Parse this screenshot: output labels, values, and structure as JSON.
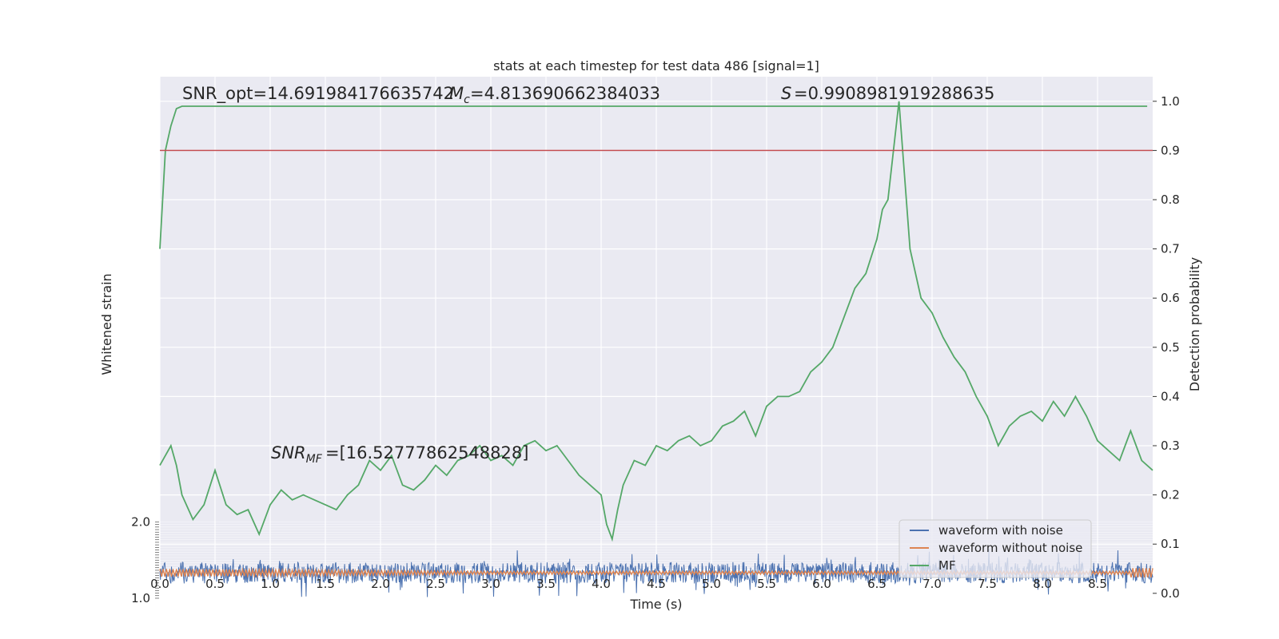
{
  "chart_data": {
    "type": "line",
    "title": "stats at each timestep for test data 486 [signal=1]",
    "xlabel": "Time (s)",
    "ylabel_left": "Whitened strain",
    "ylabel_right": "Detection probability",
    "xlim": [
      0.0,
      9.0
    ],
    "ylim_right": [
      0.05,
      1.05
    ],
    "ylim_left": [
      -1.0,
      2.0
    ],
    "x_ticks": [
      "0.0",
      "0.5",
      "1.0",
      "1.5",
      "2.0",
      "2.5",
      "3.0",
      "3.5",
      "4.0",
      "4.5",
      "5.0",
      "5.5",
      "6.0",
      "6.5",
      "7.0",
      "7.5",
      "8.0",
      "8.5"
    ],
    "y_ticks_right": [
      "0.0",
      "0.1",
      "0.2",
      "0.3",
      "0.4",
      "0.5",
      "0.6",
      "0.7",
      "0.8",
      "0.9",
      "1.0"
    ],
    "y_ticks_left_visible": [
      "2.0",
      "1.0"
    ],
    "grid": true,
    "legend_placement": "lower-right",
    "threshold": 0.9,
    "annotations": {
      "snr_opt": "SNR_opt=14.691984176635742",
      "mc": "=4.813690662384033",
      "s": "=0.9908981919288635",
      "snr_mf": "=[16.52777862548828]"
    },
    "series": [
      {
        "name": "waveform with noise",
        "color": "#4c72b0",
        "axis": "left",
        "x": [
          0.0,
          9.0
        ],
        "y_range": [
          -0.6,
          0.6
        ]
      },
      {
        "name": "waveform without noise",
        "color": "#dd8452",
        "axis": "left",
        "x": [
          0.0,
          9.0
        ],
        "y_range": [
          -0.15,
          0.15
        ]
      },
      {
        "name": "MF",
        "color": "#55a868",
        "axis": "right",
        "x": [
          0.0,
          0.05,
          0.1,
          0.15,
          0.2,
          0.3,
          0.5,
          1.0,
          2.0,
          3.0,
          4.0,
          5.0,
          6.0,
          6.65,
          6.7,
          7.0,
          8.0,
          8.95
        ],
        "y": [
          0.7,
          0.9,
          0.95,
          0.985,
          0.99,
          0.99,
          0.99,
          0.99,
          0.99,
          0.99,
          0.99,
          0.99,
          0.99,
          0.99,
          0.99,
          0.99,
          0.99,
          0.99
        ]
      },
      {
        "name": "",
        "color": "#55a868",
        "axis": "right",
        "x": [
          0.0,
          0.05,
          0.1,
          0.15,
          0.2,
          0.3,
          0.4,
          0.5,
          0.6,
          0.7,
          0.8,
          0.9,
          1.0,
          1.1,
          1.2,
          1.3,
          1.4,
          1.5,
          1.6,
          1.7,
          1.8,
          1.9,
          2.0,
          2.1,
          2.2,
          2.3,
          2.4,
          2.5,
          2.6,
          2.7,
          2.8,
          2.9,
          3.0,
          3.1,
          3.2,
          3.3,
          3.4,
          3.5,
          3.6,
          3.7,
          3.8,
          3.9,
          4.0,
          4.05,
          4.1,
          4.15,
          4.2,
          4.3,
          4.4,
          4.5,
          4.6,
          4.7,
          4.8,
          4.9,
          5.0,
          5.1,
          5.2,
          5.3,
          5.4,
          5.5,
          5.6,
          5.7,
          5.8,
          5.9,
          6.0,
          6.1,
          6.2,
          6.3,
          6.4,
          6.5,
          6.55,
          6.6,
          6.65,
          6.7,
          6.75,
          6.8,
          6.9,
          7.0,
          7.1,
          7.2,
          7.3,
          7.4,
          7.5,
          7.6,
          7.7,
          7.8,
          7.9,
          8.0,
          8.1,
          8.2,
          8.3,
          8.4,
          8.5,
          8.6,
          8.7,
          8.8,
          8.9,
          9.0
        ],
        "y": [
          0.26,
          0.28,
          0.3,
          0.26,
          0.2,
          0.15,
          0.18,
          0.25,
          0.18,
          0.16,
          0.17,
          0.12,
          0.18,
          0.21,
          0.19,
          0.2,
          0.19,
          0.18,
          0.17,
          0.2,
          0.22,
          0.27,
          0.25,
          0.28,
          0.22,
          0.21,
          0.23,
          0.26,
          0.24,
          0.27,
          0.28,
          0.3,
          0.27,
          0.28,
          0.26,
          0.3,
          0.31,
          0.29,
          0.3,
          0.27,
          0.24,
          0.22,
          0.2,
          0.14,
          0.11,
          0.17,
          0.22,
          0.27,
          0.26,
          0.3,
          0.29,
          0.31,
          0.32,
          0.3,
          0.31,
          0.34,
          0.35,
          0.37,
          0.32,
          0.38,
          0.4,
          0.4,
          0.41,
          0.45,
          0.47,
          0.5,
          0.56,
          0.62,
          0.65,
          0.72,
          0.78,
          0.8,
          0.9,
          1.0,
          0.85,
          0.7,
          0.6,
          0.57,
          0.52,
          0.48,
          0.45,
          0.4,
          0.36,
          0.3,
          0.34,
          0.36,
          0.37,
          0.35,
          0.39,
          0.36,
          0.4,
          0.36,
          0.31,
          0.29,
          0.27,
          0.33,
          0.27,
          0.25
        ]
      }
    ]
  }
}
